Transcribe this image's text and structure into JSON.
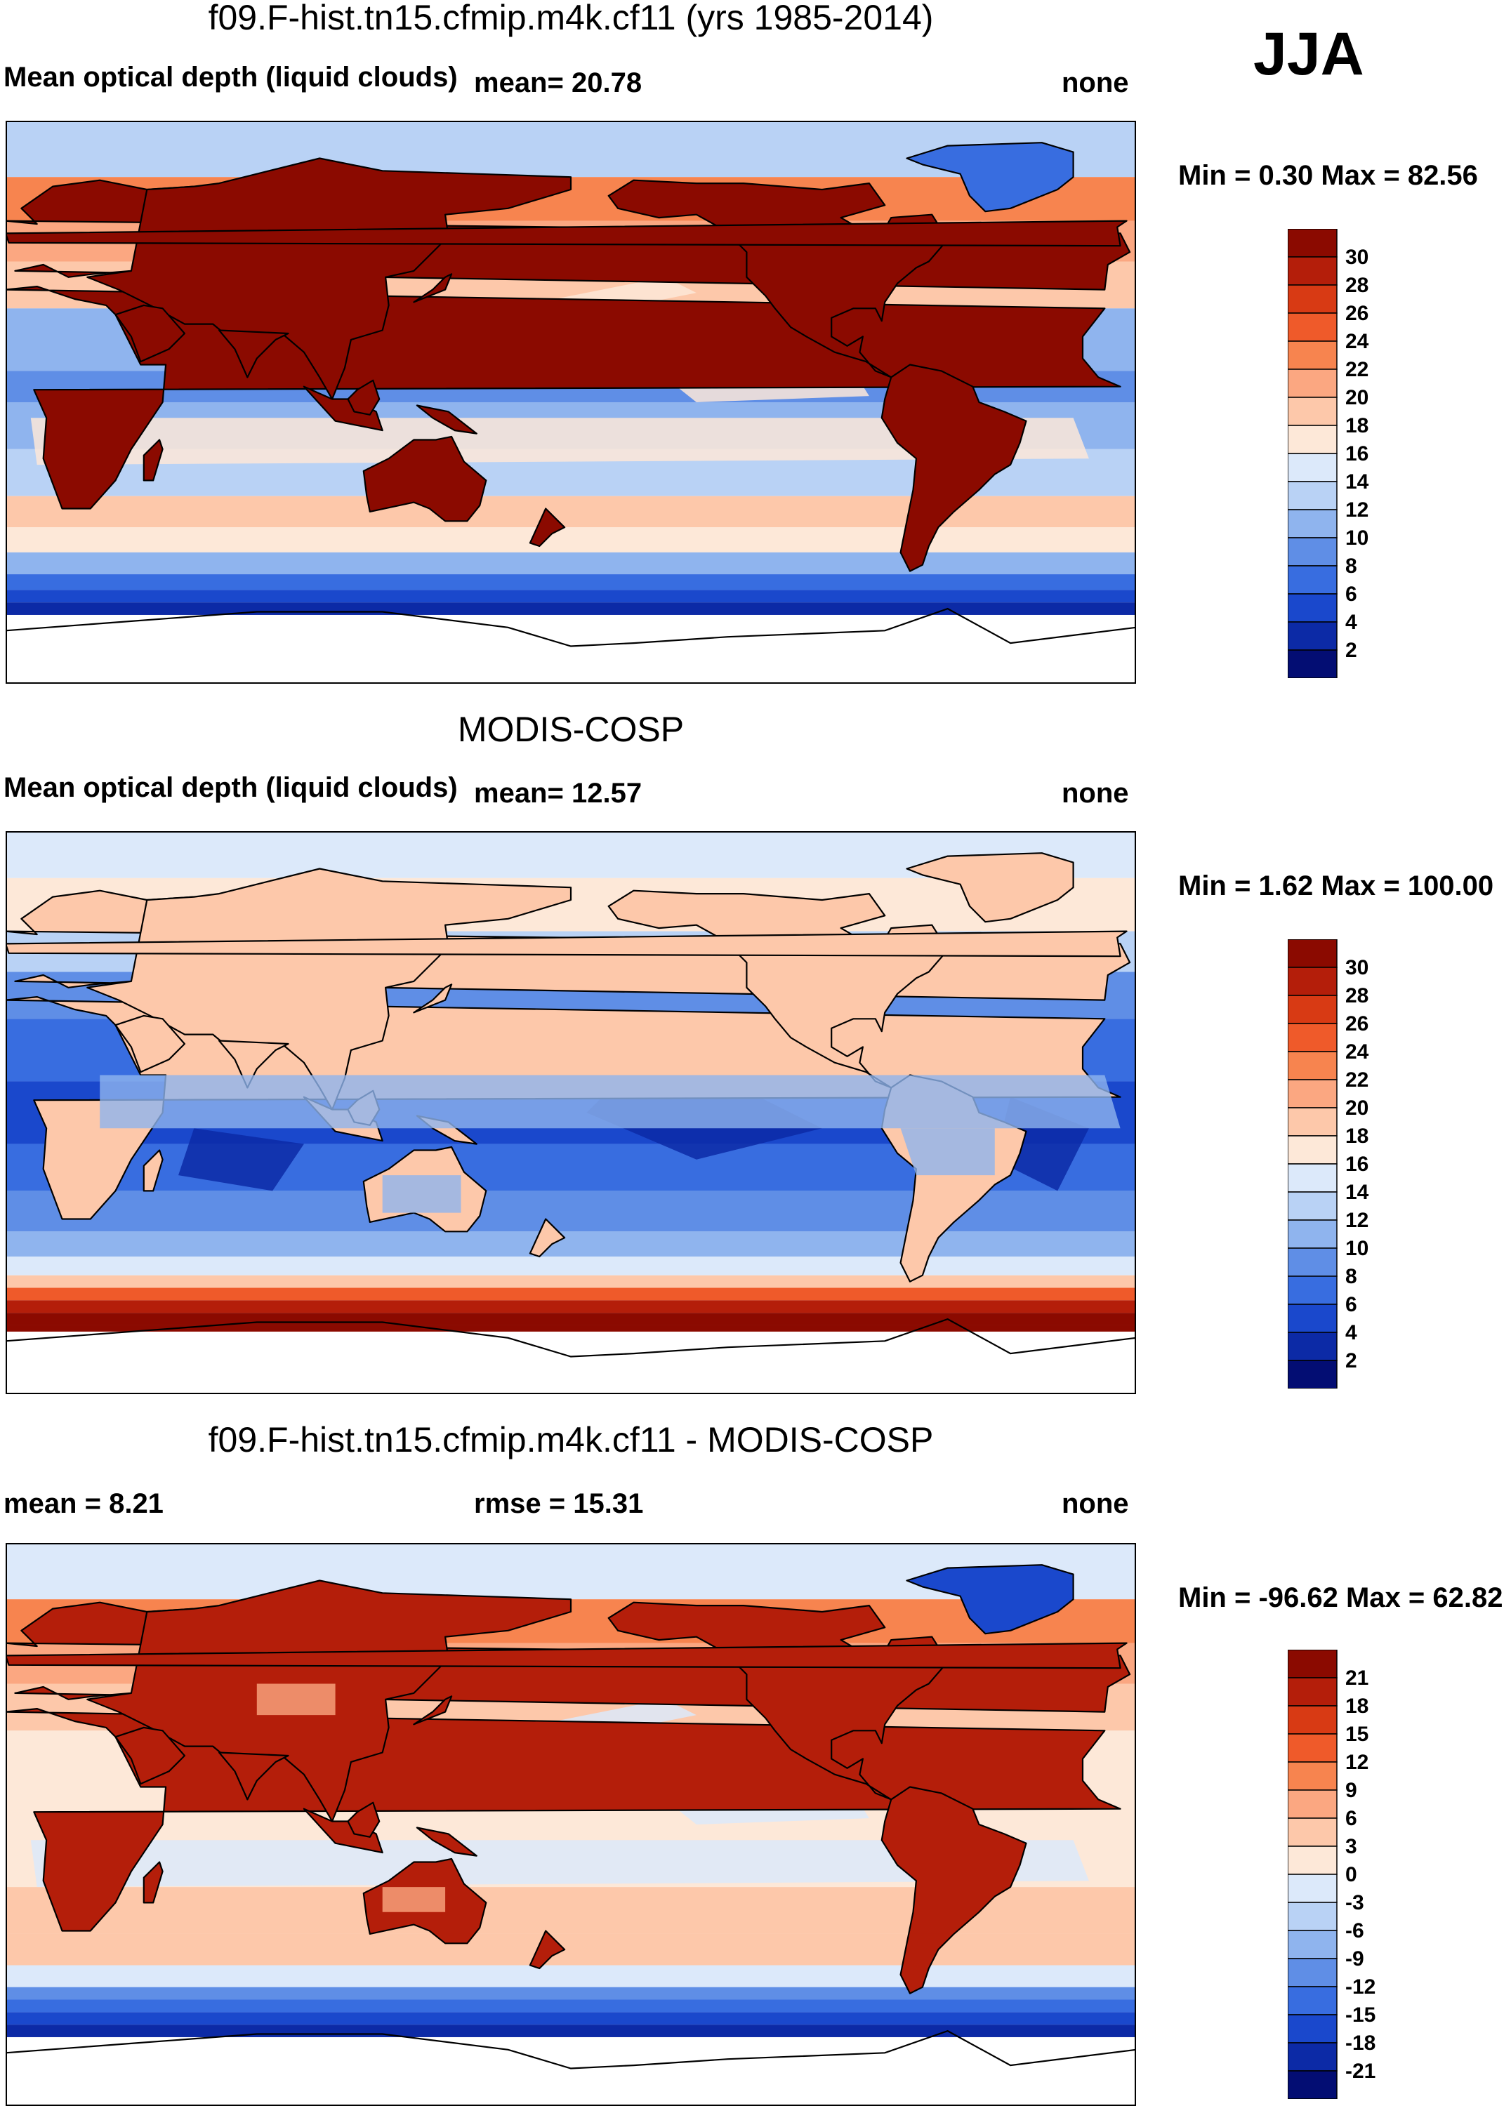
{
  "season": "JJA",
  "panels": [
    {
      "title": "f09.F-hist.tn15.cfmip.m4k.cf11 (yrs 1985-2014)",
      "left_label": "Mean optical depth (liquid clouds)",
      "center_label": "mean=  20.78",
      "right_label": "none",
      "minmax": "Min =   0.30 Max =  82.56",
      "kind": "model"
    },
    {
      "title": "MODIS-COSP",
      "left_label": "Mean optical depth (liquid clouds)",
      "center_label": "mean=  12.57",
      "right_label": "none",
      "minmax": "Min =   1.62 Max = 100.00",
      "kind": "obs"
    },
    {
      "title": "f09.F-hist.tn15.cfmip.m4k.cf11 - MODIS-COSP",
      "left_label": "mean =   8.21",
      "center_label": "rmse =  15.31",
      "right_label": "none",
      "minmax": "Min = -96.62 Max =  62.82",
      "kind": "diff"
    }
  ],
  "chart_data": [
    {
      "type": "heatmap",
      "title": "f09.F-hist.tn15.cfmip.m4k.cf11 (yrs 1985-2014)",
      "variable": "Mean optical depth (liquid clouds)",
      "units": "none",
      "mean": 20.78,
      "min": 0.3,
      "max": 82.56,
      "colorbar_levels": [
        "30",
        "28",
        "26",
        "24",
        "22",
        "20",
        "18",
        "16",
        "14",
        "12",
        "10",
        "8",
        "6",
        "4",
        "2"
      ],
      "colorbar_colors": [
        "#8b0a00",
        "#b41e0a",
        "#d83a14",
        "#ef5a2a",
        "#f7844f",
        "#fba781",
        "#fdc8aa",
        "#fde8d8",
        "#dce9fa",
        "#b9d2f5",
        "#8fb4ee",
        "#5f8ee6",
        "#386de0",
        "#1a48cc",
        "#0c2aa6",
        "#030d73"
      ]
    },
    {
      "type": "heatmap",
      "title": "MODIS-COSP",
      "variable": "Mean optical depth (liquid clouds)",
      "units": "none",
      "mean": 12.57,
      "min": 1.62,
      "max": 100.0,
      "colorbar_levels": [
        "30",
        "28",
        "26",
        "24",
        "22",
        "20",
        "18",
        "16",
        "14",
        "12",
        "10",
        "8",
        "6",
        "4",
        "2"
      ],
      "colorbar_colors": [
        "#8b0a00",
        "#b41e0a",
        "#d83a14",
        "#ef5a2a",
        "#f7844f",
        "#fba781",
        "#fdc8aa",
        "#fde8d8",
        "#dce9fa",
        "#b9d2f5",
        "#8fb4ee",
        "#5f8ee6",
        "#386de0",
        "#1a48cc",
        "#0c2aa6",
        "#030d73"
      ]
    },
    {
      "type": "heatmap",
      "title": "f09.F-hist.tn15.cfmip.m4k.cf11 - MODIS-COSP",
      "units": "none",
      "mean": 8.21,
      "rmse": 15.31,
      "min": -96.62,
      "max": 62.82,
      "colorbar_levels": [
        "21",
        "18",
        "15",
        "12",
        "9",
        "6",
        "3",
        "0",
        "-3",
        "-6",
        "-9",
        "-12",
        "-15",
        "-18",
        "-21"
      ],
      "colorbar_colors": [
        "#8b0a00",
        "#b41e0a",
        "#d83a14",
        "#ef5a2a",
        "#f7844f",
        "#fba781",
        "#fdc8aa",
        "#fde8d8",
        "#dce9fa",
        "#b9d2f5",
        "#8fb4ee",
        "#5f8ee6",
        "#386de0",
        "#1a48cc",
        "#0c2aa6",
        "#030d73"
      ]
    }
  ]
}
